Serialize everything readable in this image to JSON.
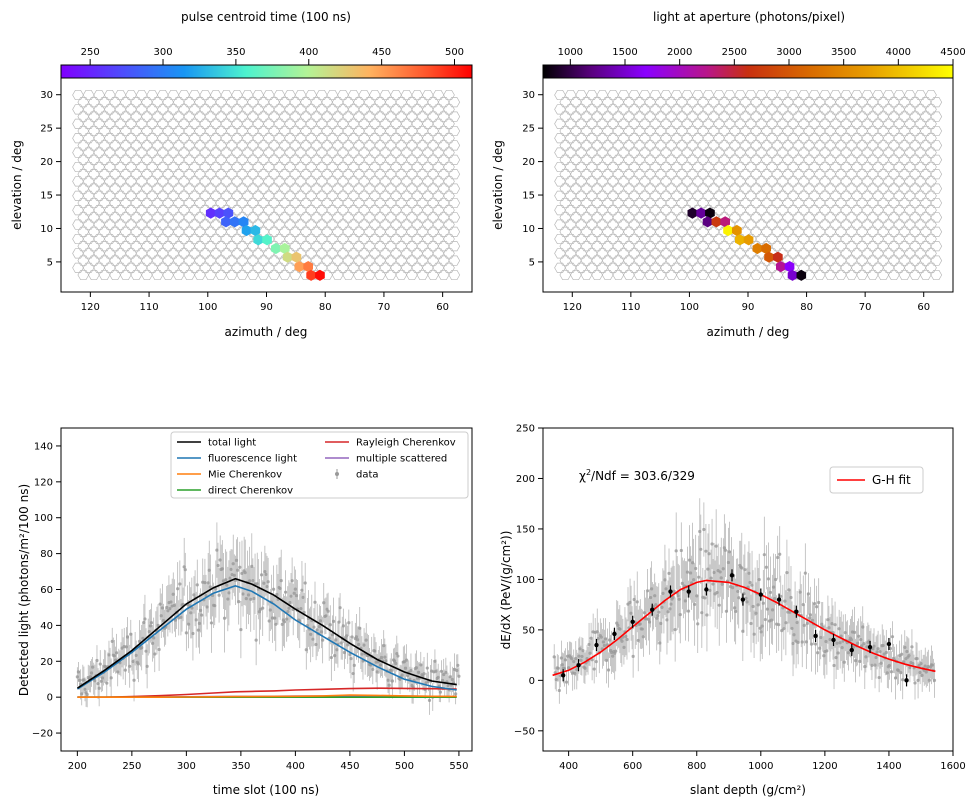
{
  "chart_data": [
    {
      "type": "heatmap",
      "title": "pulse centroid time (100 ns)",
      "xlabel": "azimuth / deg",
      "ylabel": "elevation / deg",
      "xlim": [
        125,
        55
      ],
      "ylim": [
        0.5,
        32.5
      ],
      "xticks": [
        "120",
        "110",
        "100",
        "90",
        "80",
        "70",
        "60"
      ],
      "yticks": [
        "30",
        "25",
        "20",
        "15",
        "10",
        "5"
      ],
      "colorbar": {
        "colormap": "rainbow",
        "range": [
          230,
          512
        ],
        "ticks": [
          "250",
          "300",
          "350",
          "400",
          "450",
          "500"
        ]
      },
      "pixels": [
        {
          "az": 99.5,
          "el": 12.3,
          "v": 255
        },
        {
          "az": 98.0,
          "el": 12.3,
          "v": 265
        },
        {
          "az": 96.5,
          "el": 12.3,
          "v": 275
        },
        {
          "az": 96.9,
          "el": 11.0,
          "v": 285
        },
        {
          "az": 95.4,
          "el": 11.0,
          "v": 295
        },
        {
          "az": 93.9,
          "el": 11.0,
          "v": 305
        },
        {
          "az": 93.4,
          "el": 9.7,
          "v": 320
        },
        {
          "az": 91.9,
          "el": 9.7,
          "v": 330
        },
        {
          "az": 91.4,
          "el": 8.3,
          "v": 345
        },
        {
          "az": 89.9,
          "el": 8.3,
          "v": 360
        },
        {
          "az": 88.4,
          "el": 7.0,
          "v": 378
        },
        {
          "az": 86.9,
          "el": 7.0,
          "v": 395
        },
        {
          "az": 86.4,
          "el": 5.7,
          "v": 415
        },
        {
          "az": 84.9,
          "el": 5.7,
          "v": 430
        },
        {
          "az": 84.4,
          "el": 4.3,
          "v": 450
        },
        {
          "az": 82.9,
          "el": 4.3,
          "v": 465
        },
        {
          "az": 82.4,
          "el": 3.0,
          "v": 490
        },
        {
          "az": 80.9,
          "el": 3.0,
          "v": 508
        }
      ]
    },
    {
      "type": "heatmap",
      "title": "light at aperture (photons/pixel)",
      "xlabel": "azimuth / deg",
      "ylabel": "elevation / deg",
      "xlim": [
        125,
        55
      ],
      "ylim": [
        0.5,
        32.5
      ],
      "xticks": [
        "120",
        "110",
        "100",
        "90",
        "80",
        "70",
        "60"
      ],
      "yticks": [
        "30",
        "25",
        "20",
        "15",
        "10",
        "5"
      ],
      "colorbar": {
        "colormap": "gnuplot",
        "range": [
          750,
          4500
        ],
        "ticks": [
          "1000",
          "1500",
          "2000",
          "2500",
          "3000",
          "3500",
          "4000",
          "4500"
        ]
      },
      "pixels": [
        {
          "az": 99.5,
          "el": 12.3,
          "v": 900
        },
        {
          "az": 98.0,
          "el": 12.3,
          "v": 1300
        },
        {
          "az": 96.5,
          "el": 12.3,
          "v": 800
        },
        {
          "az": 96.9,
          "el": 11.0,
          "v": 1200
        },
        {
          "az": 95.4,
          "el": 11.0,
          "v": 2700
        },
        {
          "az": 93.9,
          "el": 11.0,
          "v": 2300
        },
        {
          "az": 93.4,
          "el": 9.7,
          "v": 4400
        },
        {
          "az": 91.9,
          "el": 9.7,
          "v": 3600
        },
        {
          "az": 91.4,
          "el": 8.3,
          "v": 3900
        },
        {
          "az": 89.9,
          "el": 8.3,
          "v": 3700
        },
        {
          "az": 88.4,
          "el": 7.0,
          "v": 3400
        },
        {
          "az": 86.9,
          "el": 7.0,
          "v": 3200
        },
        {
          "az": 86.4,
          "el": 5.7,
          "v": 3000
        },
        {
          "az": 84.9,
          "el": 5.7,
          "v": 2600
        },
        {
          "az": 84.4,
          "el": 4.3,
          "v": 2200
        },
        {
          "az": 82.9,
          "el": 4.3,
          "v": 1700
        },
        {
          "az": 82.4,
          "el": 3.0,
          "v": 1500
        },
        {
          "az": 80.9,
          "el": 3.0,
          "v": 800
        }
      ]
    },
    {
      "type": "line",
      "xlabel": "time slot (100 ns)",
      "ylabel": "Detected light (photons/m²/100 ns)",
      "xlim": [
        185,
        562
      ],
      "ylim": [
        -30,
        150
      ],
      "xticks": [
        "200",
        "250",
        "300",
        "350",
        "400",
        "450",
        "500",
        "550"
      ],
      "yticks": [
        "−20",
        "0",
        "20",
        "40",
        "60",
        "80",
        "100",
        "120",
        "140"
      ],
      "grid": false,
      "legend_position": "top-right",
      "x": [
        200,
        225,
        250,
        275,
        300,
        325,
        345,
        360,
        380,
        400,
        425,
        450,
        475,
        500,
        525,
        548
      ],
      "series": [
        {
          "name": "total light",
          "color": "#000000",
          "values": [
            5,
            15,
            26,
            39,
            52,
            61,
            66,
            63,
            57,
            49,
            40,
            30,
            21,
            14,
            9,
            7
          ]
        },
        {
          "name": "fluorescence light",
          "color": "#1f77b4",
          "values": [
            4.5,
            14,
            25,
            37,
            49,
            58,
            62,
            59,
            52,
            43,
            34,
            25,
            17,
            10,
            6,
            4
          ]
        },
        {
          "name": "Mie Cherenkov",
          "color": "#ff7f0e",
          "values": [
            0,
            0,
            0,
            0,
            0.1,
            0.2,
            0.3,
            0.3,
            0.4,
            0.5,
            0.7,
            1.2,
            1.0,
            0.7,
            0.5,
            0.4
          ]
        },
        {
          "name": "direct Cherenkov",
          "color": "#2ca02c",
          "values": [
            0,
            0,
            0,
            0,
            0,
            0,
            0,
            0,
            0,
            0,
            0,
            0,
            0,
            0,
            0,
            0
          ]
        },
        {
          "name": "Rayleigh Cherenkov",
          "color": "#d62728",
          "values": [
            0,
            0,
            0.3,
            0.8,
            1.5,
            2.3,
            3.0,
            3.2,
            3.5,
            4.0,
            4.4,
            4.8,
            5.0,
            4.9,
            4.7,
            4.5
          ]
        },
        {
          "name": "multiple scattered",
          "color": "#9467bd",
          "values": [
            0,
            0,
            0,
            0.1,
            0.2,
            0.3,
            0.4,
            0.4,
            0.5,
            0.6,
            0.6,
            0.7,
            0.7,
            0.6,
            0.5,
            0.4
          ]
        }
      ],
      "data_series": {
        "name": "data",
        "color": "#999999"
      }
    },
    {
      "type": "scatter",
      "xlabel": "slant depth  (g/cm²)",
      "ylabel": "dE/dX (PeV/(g/cm²))",
      "xlim": [
        320,
        1600
      ],
      "ylim": [
        -70,
        250
      ],
      "xticks": [
        "400",
        "600",
        "800",
        "1000",
        "1200",
        "1400",
        "1600"
      ],
      "yticks": [
        "−50",
        "0",
        "50",
        "100",
        "150",
        "200",
        "250"
      ],
      "annotation": {
        "prefix": "χ",
        "superscript": "2",
        "suffix": "/Ndf = 303.6/329"
      },
      "legend_position": "top-right",
      "fit": {
        "name": "G-H fit",
        "color": "#ff0000",
        "x": [
          350,
          400,
          450,
          500,
          550,
          600,
          650,
          700,
          750,
          800,
          830,
          900,
          950,
          1000,
          1050,
          1100,
          1150,
          1200,
          1250,
          1300,
          1350,
          1400,
          1450,
          1500,
          1545
        ],
        "y": [
          5,
          10,
          18,
          28,
          40,
          53,
          66,
          79,
          90,
          97,
          99,
          97,
          92,
          85,
          77,
          68,
          59,
          50,
          42,
          34,
          27,
          21,
          16,
          12,
          9
        ]
      },
      "binned_points": {
        "color": "#000000",
        "x": [
          383,
          431,
          487,
          543,
          600,
          661,
          718,
          775,
          830,
          910,
          944,
          1000,
          1057,
          1111,
          1171,
          1227,
          1284,
          1341,
          1400,
          1455
        ],
        "y": [
          5,
          15,
          35,
          46,
          58,
          70,
          88,
          88,
          90,
          104,
          80,
          85,
          80,
          68,
          44,
          40,
          30,
          33,
          36,
          0
        ]
      }
    }
  ]
}
